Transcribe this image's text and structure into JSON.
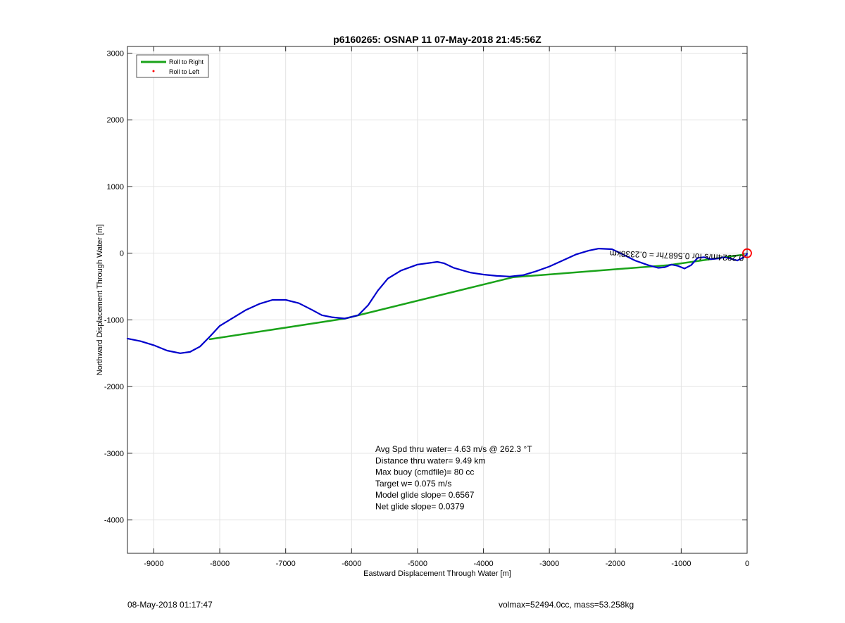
{
  "chart_data": {
    "type": "line",
    "title": "p6160265: OSNAP 11 07-May-2018 21:45:56Z",
    "xlabel": "Eastward Displacement Through Water [m]",
    "ylabel": "Northward Displacement Through Water [m]",
    "xlim": [
      -9400,
      0
    ],
    "ylim": [
      -4500,
      3100
    ],
    "xticks": [
      -9000,
      -8000,
      -7000,
      -6000,
      -5000,
      -4000,
      -3000,
      -2000,
      -1000,
      0
    ],
    "yticks": [
      -4000,
      -3000,
      -2000,
      -1000,
      0,
      1000,
      2000,
      3000
    ],
    "grid": true,
    "legend_position": "top-left",
    "legend": [
      {
        "label": "Roll to Right",
        "color": "#1aa31a",
        "style": "line"
      },
      {
        "label": "Roll to Left",
        "color": "#ff0000",
        "style": "point"
      }
    ],
    "series": [
      {
        "name": "",
        "color": "#0000cc",
        "x": [
          -9400,
          -9200,
          -9000,
          -8800,
          -8600,
          -8450,
          -8300,
          -8150,
          -8000,
          -7800,
          -7600,
          -7400,
          -7200,
          -7000,
          -6800,
          -6600,
          -6450,
          -6300,
          -6100,
          -5900,
          -5750,
          -5600,
          -5450,
          -5250,
          -5000,
          -4700,
          -4600,
          -4450,
          -4200,
          -4000,
          -3800,
          -3600,
          -3400,
          -3200,
          -3000,
          -2800,
          -2600,
          -2400,
          -2250,
          -2050,
          -1900,
          -1700,
          -1500,
          -1350,
          -1250,
          -1150,
          -1050,
          -950,
          -850,
          -750,
          -650,
          -550,
          -450,
          -350,
          -250,
          -150,
          -50,
          0
        ],
        "y": [
          -1280,
          -1320,
          -1380,
          -1460,
          -1500,
          -1480,
          -1400,
          -1250,
          -1090,
          -970,
          -850,
          -760,
          -700,
          -700,
          -750,
          -850,
          -930,
          -960,
          -980,
          -930,
          -780,
          -560,
          -380,
          -260,
          -170,
          -130,
          -150,
          -220,
          -290,
          -320,
          -340,
          -350,
          -330,
          -270,
          -200,
          -110,
          -20,
          40,
          70,
          60,
          -10,
          -110,
          -180,
          -220,
          -210,
          -170,
          -190,
          -230,
          -180,
          -70,
          -60,
          -90,
          -80,
          -60,
          -80,
          -110,
          -60,
          -10
        ]
      },
      {
        "name": "",
        "color": "#1aa31a",
        "x": [
          -8150,
          -6100,
          -3550,
          -1200,
          -50
        ],
        "y": [
          -1290,
          -980,
          -360,
          -180,
          -20
        ]
      }
    ],
    "annotations": [
      "Avg Spd thru water=  4.63 m/s @ 262.3 °T",
      "Distance thru water=  9.49 km",
      "Max buoy (cmdfile)= 80 cc",
      "Target w= 0.075 m/s",
      "Model glide slope= 0.6567",
      "Net glide slope= 0.0379"
    ],
    "overlapping_label": "0.2924m/s for 0.5687hr = 0.2338km",
    "start_marker_color": "#ff0000"
  },
  "footer": {
    "timestamp": "08-May-2018 01:17:47",
    "stats": "volmax=52494.0cc, mass=53.258kg"
  }
}
